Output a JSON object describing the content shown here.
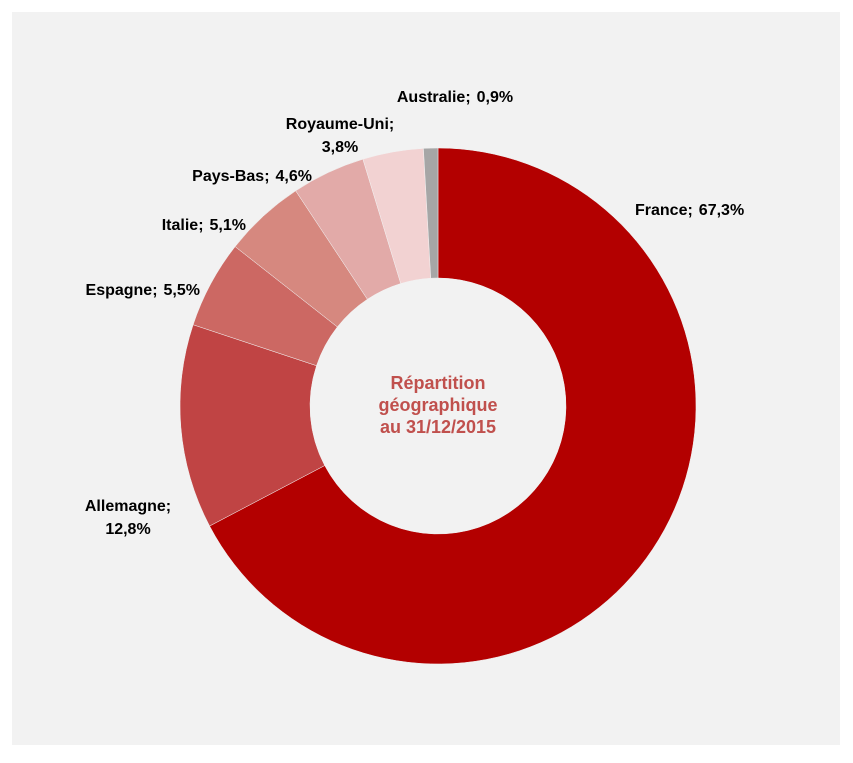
{
  "chart_data": {
    "type": "donut",
    "center_label": [
      "Répartition",
      "géographique",
      "au 31/12/2015"
    ],
    "categories": [
      "France;",
      "Allemagne;",
      "Espagne;",
      "Italie;",
      "Pays-Bas;",
      "Royaume-Uni;",
      "Australie;"
    ],
    "values": [
      67.3,
      12.8,
      5.5,
      5.1,
      4.6,
      3.8,
      0.9
    ],
    "value_labels": [
      "67,3%",
      "12,8%",
      "5,5%",
      "5,1%",
      "4,6%",
      "3,8%",
      "0,9%"
    ],
    "colors": [
      "#b30000",
      "#c04444",
      "#cc6863",
      "#d6887f",
      "#e2aaa8",
      "#f2d2d2",
      "#a6a6a6"
    ]
  }
}
